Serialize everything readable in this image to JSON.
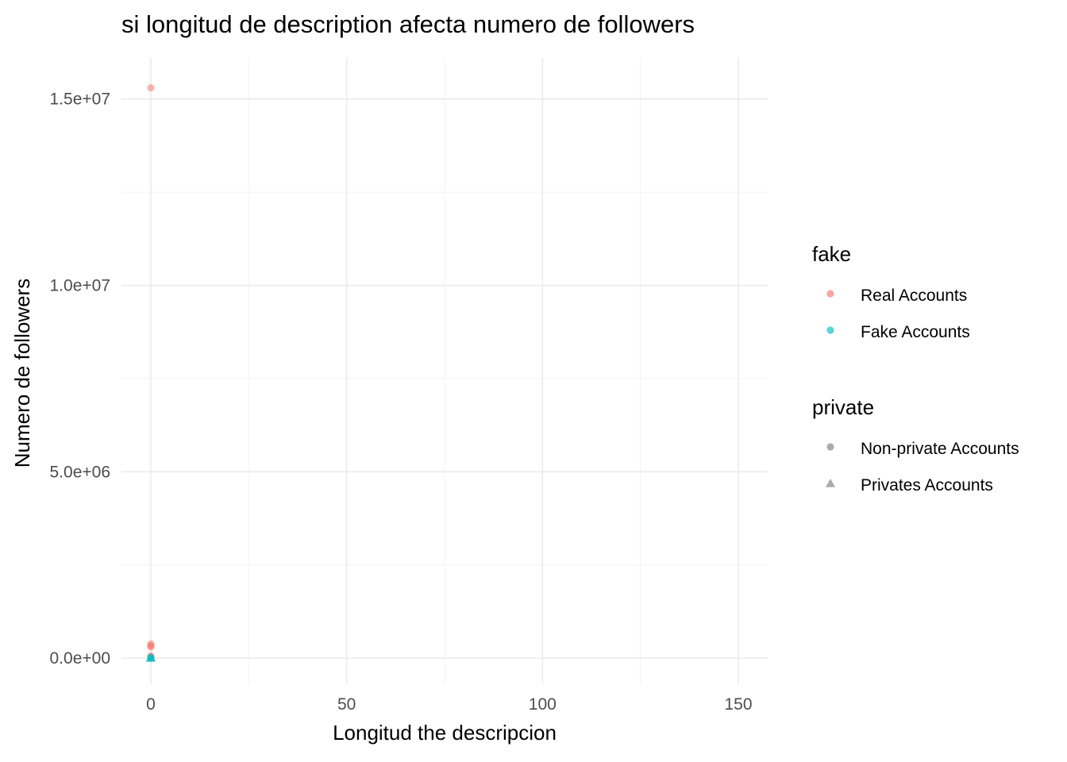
{
  "chart_data": {
    "type": "scatter",
    "title": "si longitud de description afecta numero de followers",
    "xlabel": "Longitud the descripcion",
    "ylabel": "Numero de followers",
    "xlim": [
      -7.5,
      157.5
    ],
    "ylim": [
      -700000,
      16100000
    ],
    "x_ticks": [
      0,
      50,
      100,
      150
    ],
    "x_tick_labels": [
      "0",
      "50",
      "100",
      "150"
    ],
    "y_ticks": [
      0,
      5000000,
      10000000,
      15000000
    ],
    "y_tick_labels": [
      "0.0e+00",
      "5.0e+06",
      "1.0e+07",
      "1.5e+07"
    ],
    "grid": true,
    "legend_position": "right",
    "legends": [
      {
        "title": "fake",
        "entries": [
          {
            "label": "Real Accounts",
            "color": "#F8766D",
            "shape": "circle"
          },
          {
            "label": "Fake Accounts",
            "color": "#00BFC4",
            "shape": "circle"
          }
        ]
      },
      {
        "title": "private",
        "entries": [
          {
            "label": "Non-private Accounts",
            "color": "#808080",
            "shape": "circle"
          },
          {
            "label": "Privates Accounts",
            "color": "#808080",
            "shape": "triangle"
          }
        ]
      }
    ],
    "series": [
      {
        "fake": "Real Accounts",
        "private": "Non-private Accounts",
        "color": "#F8766D",
        "shape": "circle",
        "points": [
          {
            "x": 0,
            "y": 15300000
          },
          {
            "x": 0,
            "y": 380000
          },
          {
            "x": 0,
            "y": 330000
          },
          {
            "x": 0,
            "y": 300000
          },
          {
            "x": 0,
            "y": 60000
          },
          {
            "x": 0,
            "y": 30000
          }
        ]
      },
      {
        "fake": "Real Accounts",
        "private": "Privates Accounts",
        "color": "#F8766D",
        "shape": "triangle",
        "points": [
          {
            "x": 0,
            "y": 20000
          }
        ]
      },
      {
        "fake": "Fake Accounts",
        "private": "Non-private Accounts",
        "color": "#00BFC4",
        "shape": "circle",
        "points": [
          {
            "x": 0,
            "y": 5000
          },
          {
            "x": 0,
            "y": 1000
          }
        ]
      },
      {
        "fake": "Fake Accounts",
        "private": "Privates Accounts",
        "color": "#00BFC4",
        "shape": "triangle",
        "points": [
          {
            "x": 0,
            "y": 20000
          },
          {
            "x": 0,
            "y": 2000
          }
        ]
      }
    ]
  }
}
